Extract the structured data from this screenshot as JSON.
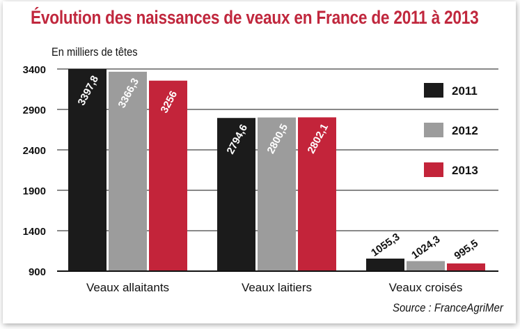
{
  "title": "Évolution des naissances de veaux en France de 2011 à 2013",
  "unit_label": "En milliers de têtes",
  "source": "Source : FranceAgriMer",
  "chart_data": {
    "type": "bar",
    "categories": [
      "Veaux allaitants",
      "Veaux laitiers",
      "Veaux croisés"
    ],
    "series": [
      {
        "name": "2011",
        "color": "#1b1b1b",
        "values": [
          3397.8,
          2794.6,
          1055.3
        ],
        "labels": [
          "3397,8",
          "2794,6",
          "1055,3"
        ]
      },
      {
        "name": "2012",
        "color": "#9c9c9c",
        "values": [
          3366.3,
          2800.5,
          1024.3
        ],
        "labels": [
          "3366,3",
          "2800,5",
          "1024,3"
        ]
      },
      {
        "name": "2013",
        "color": "#c3243a",
        "values": [
          3256,
          2802.1,
          995.5
        ],
        "labels": [
          "3256",
          "2802,1",
          "995,5"
        ]
      }
    ],
    "yticks": [
      900,
      1400,
      1900,
      2400,
      2900,
      3400
    ],
    "ylim": [
      900,
      3400
    ],
    "grid": true,
    "legend_position": "right"
  }
}
